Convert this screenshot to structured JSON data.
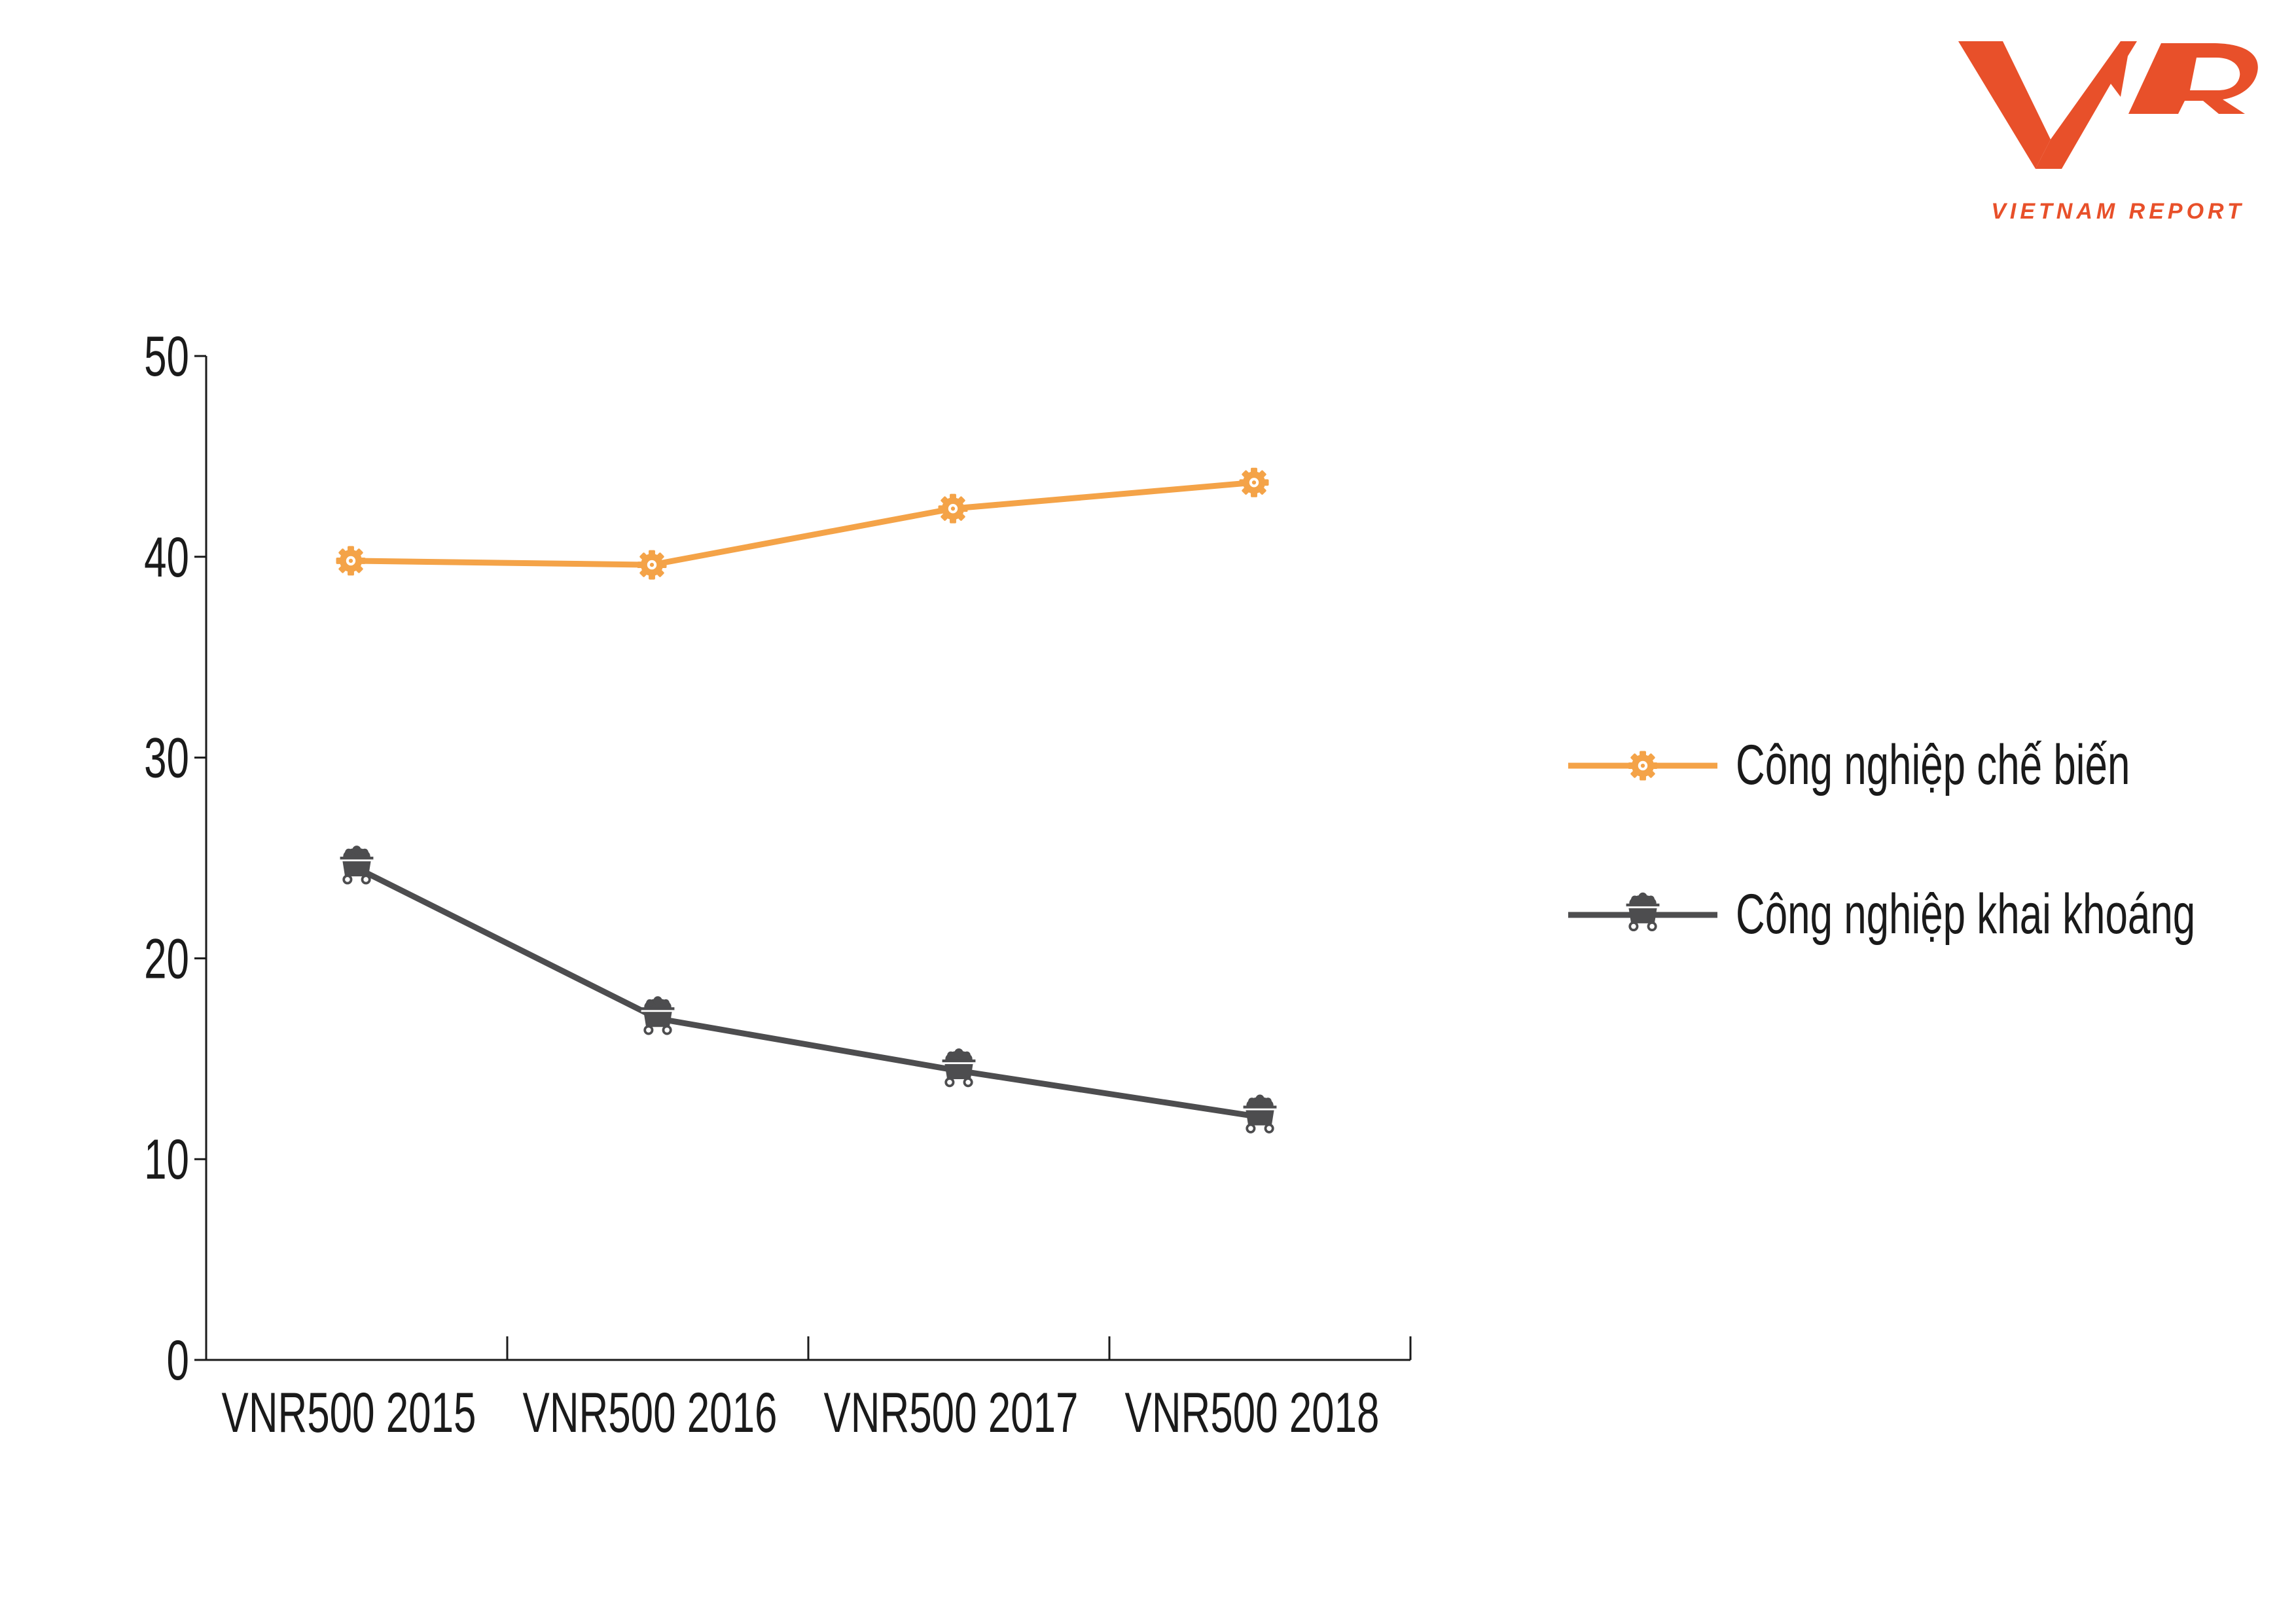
{
  "logo": {
    "mark": "VNR",
    "caption": "VIETNAM REPORT",
    "color": "#e8502a"
  },
  "chart_data": {
    "type": "line",
    "title": "",
    "xlabel": "",
    "ylabel": "",
    "categories": [
      "VNR500 2015",
      "VNR500 2016",
      "VNR500 2017",
      "VNR500 2018"
    ],
    "ylim": [
      0,
      50
    ],
    "yticks": [
      0,
      10,
      20,
      30,
      40,
      50
    ],
    "grid": false,
    "legend_position": "right",
    "series": [
      {
        "name": "Công nghiệp chế biến",
        "values": [
          39.8,
          39.6,
          42.4,
          43.7
        ],
        "color": "#f4a348",
        "marker": "gear-icon"
      },
      {
        "name": "Công nghiệp khai khoáng",
        "values": [
          24.5,
          17.0,
          14.4,
          12.1
        ],
        "color": "#4d4d4f",
        "marker": "mine-cart-icon"
      }
    ]
  }
}
